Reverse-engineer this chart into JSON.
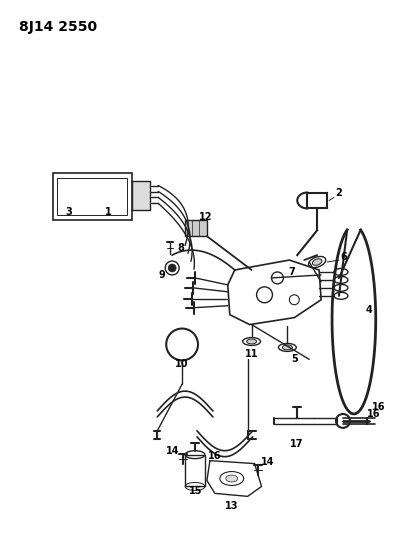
{
  "title": "8J14 2550",
  "background_color": "#ffffff",
  "line_color": "#222222",
  "text_color": "#000000",
  "title_fontsize": 10,
  "label_fontsize": 7.5,
  "figsize": [
    3.94,
    5.33
  ],
  "dpi": 100
}
